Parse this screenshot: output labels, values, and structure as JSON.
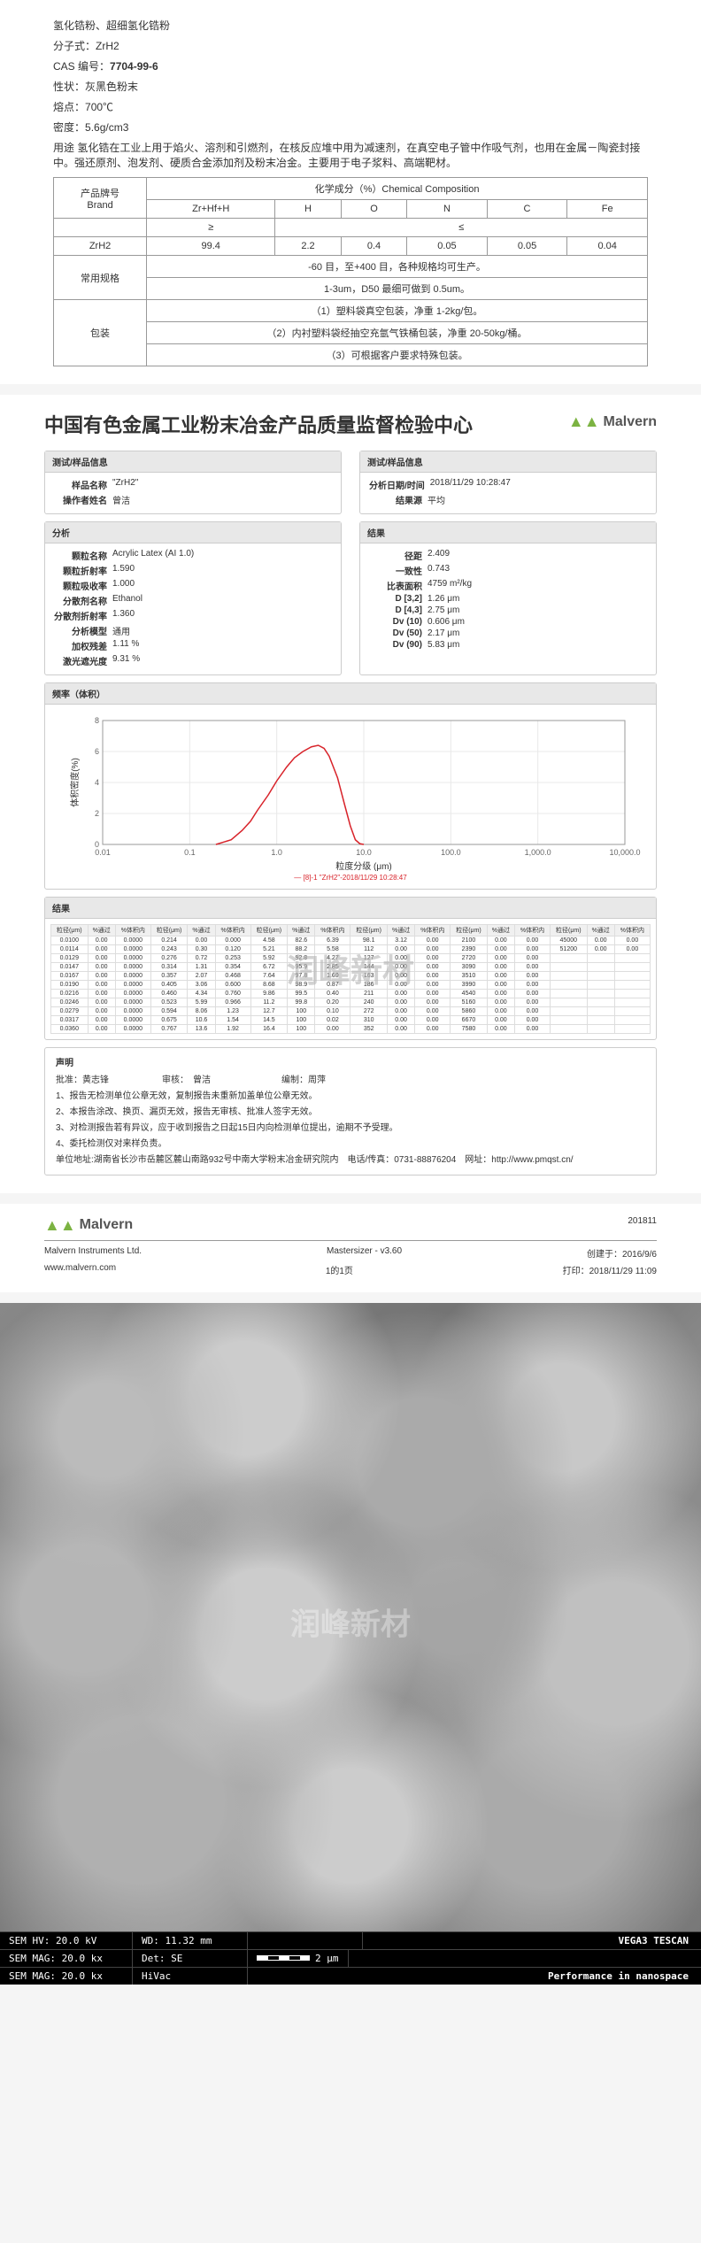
{
  "spec": {
    "name": "氢化锆粉、超细氢化锆粉",
    "formula_label": "分子式：",
    "formula": "ZrH2",
    "cas_label": "CAS 编号：",
    "cas": "7704-99-6",
    "state_label": "性状：",
    "state": "灰黑色粉末",
    "mp_label": "熔点：",
    "mp": "700℃",
    "density_label": "密度：",
    "density": "5.6g/cm3",
    "use_label": "用途",
    "use": "氢化锆在工业上用于焰火、溶剂和引燃剂，在核反应堆中用为减速剂，在真空电子管中作吸气剂，也用在金属－陶瓷封接中。强还原剂、泡发剂、硬质合金添加剂及粉末冶金。主要用于电子浆料、高端靶材。"
  },
  "table": {
    "h_brand_cn": "产品牌号",
    "h_brand_en": "Brand",
    "h_comp": "化学成分（%）Chemical Composition",
    "cols": [
      "Zr+Hf+H",
      "H",
      "O",
      "N",
      "C",
      "Fe"
    ],
    "ge": "≥",
    "le": "≤",
    "product": "ZrH2",
    "row": [
      "99.4",
      "2.2",
      "0.4",
      "0.05",
      "0.05",
      "0.04"
    ],
    "spec_label": "常用规格",
    "spec_line1": "-60 目，至+400 目，各种规格均可生产。",
    "spec_line2": "1-3um，D50 最细可做到 0.5um。",
    "pack_label": "包装",
    "pack1": "（1）塑料袋真空包装，净重 1-2kg/包。",
    "pack2": "（2）内衬塑料袋经抽空充氩气铁桶包装，净重 20-50kg/桶。",
    "pack3": "（3）可根据客户要求特殊包装。"
  },
  "report": {
    "title": "中国有色金属工业粉末冶金产品质量监督检验中心",
    "malvern": "Malvern",
    "box1_title": "测试/样品信息",
    "box2_title": "测试/样品信息",
    "sample_name_k": "样品名称",
    "sample_name_v": "\"ZrH2\"",
    "operator_k": "操作者姓名",
    "operator_v": "曾洁",
    "date_k": "分析日期/时间",
    "date_v": "2018/11/29 10:28:47",
    "result_src_k": "结果源",
    "result_src_v": "平均",
    "analysis_title": "分析",
    "result_title": "结果",
    "analysis": {
      "k1": "颗粒名称",
      "v1": "Acrylic Latex (AI 1.0)",
      "k2": "颗粒折射率",
      "v2": "1.590",
      "k3": "颗粒吸收率",
      "v3": "1.000",
      "k4": "分散剂名称",
      "v4": "Ethanol",
      "k5": "分散剂折射率",
      "v5": "1.360",
      "k6": "分析模型",
      "v6": "通用",
      "k7": "加权残差",
      "v7": "1.11 %",
      "k8": "激光遮光度",
      "v8": "9.31 %"
    },
    "result": {
      "k1": "径距",
      "v1": "2.409",
      "k2": "一致性",
      "v2": "0.743",
      "k3": "比表面积",
      "v3": "4759 m²/kg",
      "k4": "D [3,2]",
      "v4": "1.26 μm",
      "k5": "D [4,3]",
      "v5": "2.75 μm",
      "k6": "Dv (10)",
      "v6": "0.606 μm",
      "k7": "Dv (50)",
      "v7": "2.17 μm",
      "k8": "Dv (90)",
      "v8": "5.83 μm"
    },
    "chart_title": "频率（体积）",
    "chart_ylabel": "体积密度(%)",
    "chart_xlabel": "粒度分级 (μm)",
    "chart_legend": "[8]-1 \"ZrH2\"-2018/11/29 10:28:47",
    "xticks": [
      "0.01",
      "0.1",
      "1.0",
      "10.0",
      "100.0",
      "1,000.0",
      "10,000.0"
    ],
    "yticks": [
      "0",
      "2",
      "4",
      "6",
      "8"
    ],
    "curve_color": "#d8232a",
    "curve": [
      [
        0.2,
        0.0
      ],
      [
        0.3,
        0.3
      ],
      [
        0.4,
        0.9
      ],
      [
        0.5,
        1.5
      ],
      [
        0.6,
        2.2
      ],
      [
        0.8,
        3.2
      ],
      [
        1.0,
        4.1
      ],
      [
        1.3,
        5.0
      ],
      [
        1.6,
        5.6
      ],
      [
        2.0,
        6.0
      ],
      [
        2.5,
        6.3
      ],
      [
        3.0,
        6.4
      ],
      [
        3.5,
        6.2
      ],
      [
        4.0,
        5.7
      ],
      [
        5.0,
        4.3
      ],
      [
        6.0,
        2.6
      ],
      [
        7.0,
        1.2
      ],
      [
        8.0,
        0.3
      ],
      [
        9.0,
        0.05
      ],
      [
        10.0,
        0.0
      ]
    ],
    "watermark": "润峰新材",
    "results_table_title": "结果",
    "results_headers": [
      "粒径(μm)",
      "%通过",
      "%体积内",
      "粒径(μm)",
      "%通过",
      "%体积内",
      "粒径(μm)",
      "%通过",
      "%体积内",
      "粒径(μm)",
      "%通过",
      "%体积内",
      "粒径(μm)",
      "%通过",
      "%体积内",
      "粒径(μm)",
      "%通过",
      "%体积内"
    ],
    "results_rows": [
      [
        "0.0100",
        "0.00",
        "0.0000",
        "0.214",
        "0.00",
        "0.000",
        "4.58",
        "82.6",
        "6.39",
        "98.1",
        "3.12",
        "0.00",
        "2100",
        "0.00",
        "0.00",
        "45000",
        "0.00",
        "0.00"
      ],
      [
        "0.0114",
        "0.00",
        "0.0000",
        "0.243",
        "0.30",
        "0.120",
        "5.21",
        "88.2",
        "5.58",
        "112",
        "0.00",
        "0.00",
        "2390",
        "0.00",
        "0.00",
        "51200",
        "0.00",
        "0.00"
      ],
      [
        "0.0129",
        "0.00",
        "0.0000",
        "0.276",
        "0.72",
        "0.253",
        "5.92",
        "92.8",
        "4.27",
        "127",
        "0.00",
        "0.00",
        "2720",
        "0.00",
        "0.00",
        "",
        "",
        ""
      ],
      [
        "0.0147",
        "0.00",
        "0.0000",
        "0.314",
        "1.31",
        "0.354",
        "6.72",
        "95.9",
        "2.85",
        "144",
        "0.00",
        "0.00",
        "3090",
        "0.00",
        "0.00",
        "",
        "",
        ""
      ],
      [
        "0.0167",
        "0.00",
        "0.0000",
        "0.357",
        "2.07",
        "0.468",
        "7.64",
        "97.8",
        "1.69",
        "163",
        "0.00",
        "0.00",
        "3510",
        "0.00",
        "0.00",
        "",
        "",
        ""
      ],
      [
        "0.0190",
        "0.00",
        "0.0000",
        "0.405",
        "3.06",
        "0.600",
        "8.68",
        "98.9",
        "0.87",
        "186",
        "0.00",
        "0.00",
        "3990",
        "0.00",
        "0.00",
        "",
        "",
        ""
      ],
      [
        "0.0216",
        "0.00",
        "0.0000",
        "0.460",
        "4.34",
        "0.760",
        "9.86",
        "99.5",
        "0.40",
        "211",
        "0.00",
        "0.00",
        "4540",
        "0.00",
        "0.00",
        "",
        "",
        ""
      ],
      [
        "0.0246",
        "0.00",
        "0.0000",
        "0.523",
        "5.99",
        "0.966",
        "11.2",
        "99.8",
        "0.20",
        "240",
        "0.00",
        "0.00",
        "5160",
        "0.00",
        "0.00",
        "",
        "",
        ""
      ],
      [
        "0.0279",
        "0.00",
        "0.0000",
        "0.594",
        "8.06",
        "1.23",
        "12.7",
        "100",
        "0.10",
        "272",
        "0.00",
        "0.00",
        "5860",
        "0.00",
        "0.00",
        "",
        "",
        ""
      ],
      [
        "0.0317",
        "0.00",
        "0.0000",
        "0.675",
        "10.6",
        "1.54",
        "14.5",
        "100",
        "0.02",
        "310",
        "0.00",
        "0.00",
        "6670",
        "0.00",
        "0.00",
        "",
        "",
        ""
      ],
      [
        "0.0360",
        "0.00",
        "0.0000",
        "0.767",
        "13.6",
        "1.92",
        "16.4",
        "100",
        "0.00",
        "352",
        "0.00",
        "0.00",
        "7580",
        "0.00",
        "0.00",
        "",
        "",
        ""
      ]
    ],
    "notes_title": "声明",
    "approve_row": "批准：黄志锋　　　　　　审核：　曾洁　　　　　　　　编制：周萍",
    "note1": "1、报告无检测单位公章无效，复制报告未重新加盖单位公章无效。",
    "note2": "2、本报告涂改、换页、漏页无效，报告无审核、批准人签字无效。",
    "note3": "3、对检测报告若有异议，应于收到报告之日起15日内向检测单位提出，逾期不予受理。",
    "note4": "4、委托检测仅对来样负责。",
    "note5": "单位地址:湖南省长沙市岳麓区麓山南路932号中南大学粉末冶金研究院内　电话/传真：0731-88876204　网址：http://www.pmqst.cn/"
  },
  "footer": {
    "company": "Malvern Instruments Ltd.",
    "site": "www.malvern.com",
    "sw": "Mastersizer - v3.60",
    "page": "1的1页",
    "date_label": "201811",
    "created_k": "创建于：",
    "created_v": "2016/9/6",
    "printed_k": "打印：",
    "printed_v": "2018/11/29 11:09"
  },
  "sem": {
    "watermark": "润峰新材",
    "row1": {
      "hv": "SEM HV: 20.0 kV",
      "wd": "WD: 11.32 mm",
      "brand": "VEGA3 TESCAN"
    },
    "row2": {
      "mag": "SEM MAG: 20.0 kx",
      "det": "Det: SE",
      "scale": "2 μm"
    },
    "row3": {
      "mag": "SEM MAG: 20.0 kx",
      "vac": "HiVac",
      "perf": "Performance in nanospace"
    }
  }
}
